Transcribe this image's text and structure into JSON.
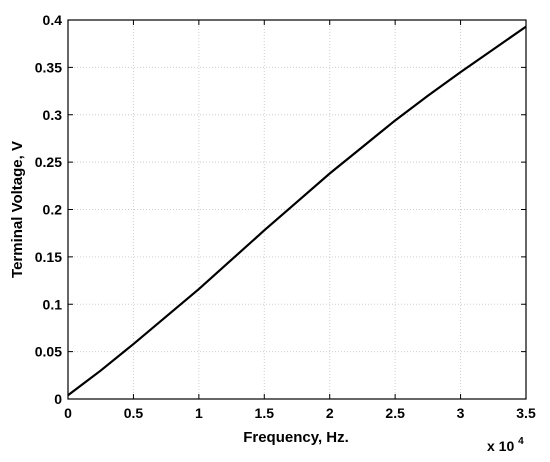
{
  "chart_data": {
    "type": "line",
    "title": "",
    "xlabel": "Frequency, Hz.",
    "ylabel": "Terminal Voltage, V",
    "x_multiplier_label": "x 10",
    "x_multiplier_exponent": "4",
    "xlim": [
      0,
      35000
    ],
    "ylim": [
      0,
      0.4
    ],
    "grid": true,
    "x_ticks": [
      0,
      5000,
      10000,
      15000,
      20000,
      25000,
      30000,
      35000
    ],
    "x_tick_labels": [
      "0",
      "0.5",
      "1",
      "1.5",
      "2",
      "2.5",
      "3",
      "3.5"
    ],
    "y_ticks": [
      0,
      0.05,
      0.1,
      0.15,
      0.2,
      0.25,
      0.3,
      0.35,
      0.4
    ],
    "y_tick_labels": [
      "0",
      "0.05",
      "0.1",
      "0.15",
      "0.2",
      "0.25",
      "0.3",
      "0.35",
      "0.4"
    ],
    "series": [
      {
        "color": "#000000",
        "x": [
          0,
          2500,
          5000,
          7500,
          10000,
          12500,
          15000,
          17500,
          20000,
          22500,
          25000,
          27500,
          30000,
          32500,
          35000
        ],
        "y": [
          0.004,
          0.03,
          0.058,
          0.087,
          0.116,
          0.147,
          0.178,
          0.208,
          0.238,
          0.266,
          0.294,
          0.32,
          0.345,
          0.369,
          0.393
        ]
      }
    ]
  }
}
